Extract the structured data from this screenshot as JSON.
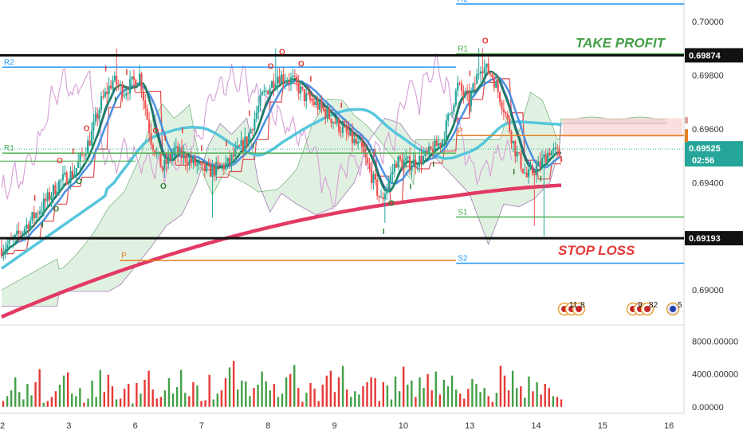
{
  "chart_data": {
    "type": "candlestick",
    "symbol_price_format": "5 decimals",
    "colors": {
      "up": "#26a69a",
      "down": "#ef5350",
      "vol_up": "#43a047",
      "vol_down": "#e53935",
      "ema_fast": "#1b7f5e",
      "ema_mid": "#4a90e2",
      "ema_slow": "#56c6dc",
      "ma_long": "#e23a63",
      "conversion": "#3f51b5",
      "kijun": "#e04b4b",
      "lagging": "#d8a5d8",
      "cloud_green": "#c8e6c9",
      "cloud_red": "#f8c9c9"
    },
    "y_axis": {
      "range": [
        0.6887,
        0.7008
      ],
      "ticks": [
        "0.70000",
        "0.69800",
        "0.69600",
        "0.69400",
        "0.69000"
      ]
    },
    "x_axis": {
      "ticks": [
        "2",
        "3",
        "6",
        "7",
        "8",
        "9",
        "10",
        "13",
        "14",
        "15",
        "16"
      ],
      "tick_values": [
        0,
        3,
        6,
        9,
        12,
        15,
        18,
        21,
        24,
        27,
        30
      ]
    },
    "annotations": {
      "take_profit": {
        "label": "TAKE PROFIT",
        "price": 0.69874,
        "tag": "0.69874"
      },
      "stop_loss": {
        "label": "STOP LOSS",
        "price": 0.69193,
        "tag": "0.69193"
      },
      "current": {
        "price": 0.69525,
        "tag": "0.69525",
        "countdown": "02:56"
      }
    },
    "pivot_levels": [
      {
        "name": "R2",
        "price": 0.70065,
        "color": "#2196f3",
        "x_start": 20.5,
        "x_end": 30.8
      },
      {
        "name": "R1",
        "price": 0.6988,
        "color": "#4caf50",
        "x_start": 20.5,
        "x_end": 30.8
      },
      {
        "name": "P",
        "price": 0.69575,
        "color": "#e67e22",
        "x_start": 20.5,
        "x_end": 30.8
      },
      {
        "name": "S1",
        "price": 0.69272,
        "color": "#4caf50",
        "x_start": 20.5,
        "x_end": 30.8
      },
      {
        "name": "S2",
        "price": 0.691,
        "color": "#2196f3",
        "x_start": 20.5,
        "x_end": 30.8
      },
      {
        "name": "R2",
        "price": 0.6983,
        "color": "#2196f3",
        "x_start": 0.0,
        "x_end": 20.5
      },
      {
        "name": "R1",
        "price": 0.6951,
        "color": "#4caf50",
        "x_start": 0.0,
        "x_end": 20.5
      },
      {
        "name": "P",
        "price": 0.6911,
        "color": "#e67e22",
        "x_start": 5.3,
        "x_end": 20.5
      }
    ],
    "volume_axis": {
      "range": [
        -800,
        9800
      ],
      "ticks": [
        "8000.00000",
        "4000.00000",
        "0.00000"
      ],
      "tick_values": [
        8000,
        4000,
        0
      ]
    },
    "volume_values": [
      700,
      1300,
      2000,
      3600,
      1800,
      900,
      2800,
      1400,
      3000,
      4600,
      500,
      700,
      1200,
      1900,
      2700,
      3800,
      4200,
      1600,
      1300,
      2300,
      500,
      1000,
      3200,
      1200,
      4500,
      1800,
      3900,
      2500,
      900,
      1000,
      2200,
      2800,
      400,
      2900,
      1600,
      3300,
      4400,
      2100,
      1000,
      1200,
      2000,
      3500,
      1600,
      2400,
      4500,
      1700,
      1300,
      3000,
      2600,
      700,
      800,
      3900,
      900,
      1600,
      2000,
      3500,
      4800,
      5600,
      2100,
      3200,
      3100,
      1300,
      2300,
      2700,
      4300,
      3100,
      2000,
      2800,
      1200,
      1600,
      3600,
      4000,
      5100,
      2300,
      600,
      1700,
      2900,
      2200,
      700,
      2700,
      3800,
      4400,
      1800,
      3600,
      5000,
      2100,
      1200,
      1900,
      1500,
      2500,
      3000,
      3600,
      3500,
      700,
      3000,
      2600,
      900,
      3700,
      1900,
      4900,
      2700,
      3200,
      1200,
      3600,
      2300,
      4000,
      2000,
      4300,
      1500,
      3300,
      2500,
      3800,
      2100,
      1600,
      1000,
      2200,
      3400,
      2800,
      1800,
      2300,
      1300,
      600,
      1700,
      5000,
      3800,
      2000,
      4400,
      2300,
      2500,
      1100,
      3700,
      1900,
      3000,
      1500,
      2800,
      2300,
      1300,
      1200,
      900
    ],
    "signal_letters": [
      "I",
      "O"
    ],
    "event_badges": [
      "11",
      "8",
      "9",
      "82",
      "5"
    ]
  }
}
